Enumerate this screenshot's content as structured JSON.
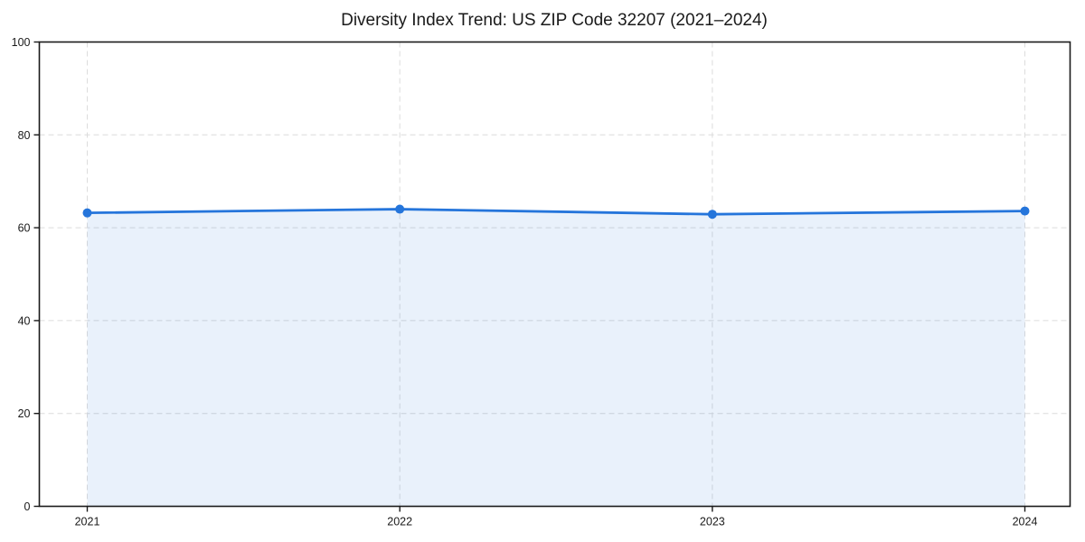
{
  "chart_data": {
    "type": "area",
    "title": "Diversity Index Trend: US ZIP Code 32207 (2021–2024)",
    "categories": [
      "2021",
      "2022",
      "2023",
      "2024"
    ],
    "series": [
      {
        "name": "Diversity Index",
        "values": [
          63.2,
          64.0,
          62.9,
          63.6
        ]
      }
    ],
    "xlabel": "",
    "ylabel": "",
    "ylim": [
      0,
      100
    ],
    "yticks": [
      0,
      20,
      40,
      60,
      80,
      100
    ],
    "grid": true,
    "grid_style": "dashed",
    "legend_position": "none",
    "colors": {
      "line": "#2575db",
      "marker": "#2575db",
      "fill": "rgba(37, 117, 219, 0.10)",
      "grid": "#dcdcdc",
      "axis": "#1a1a1a",
      "tick_label": "#1a1a1a",
      "background": "#ffffff"
    }
  }
}
